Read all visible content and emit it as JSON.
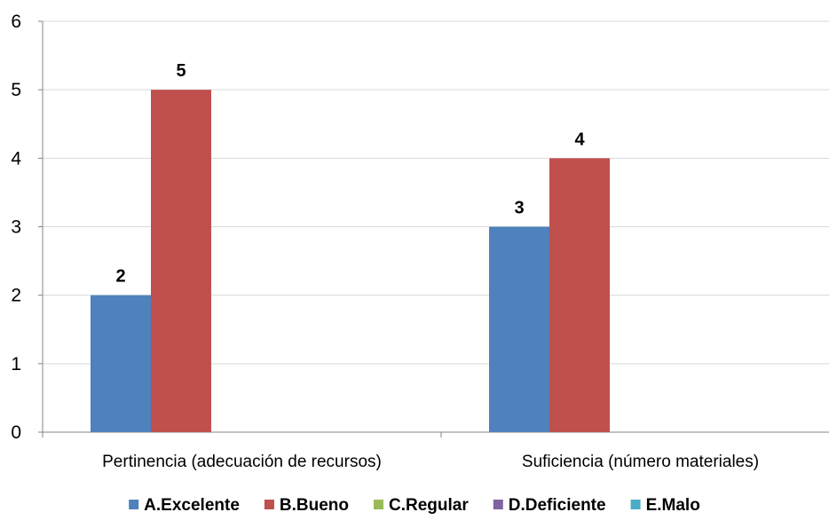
{
  "chart_data": {
    "type": "bar",
    "title": "",
    "xlabel": "",
    "ylabel": "",
    "ylim": [
      0,
      6
    ],
    "yticks": [
      0,
      1,
      2,
      3,
      4,
      5,
      6
    ],
    "grid": true,
    "legend_position": "bottom",
    "categories": [
      "Pertinencia (adecuación de recursos)",
      "Suficiencia (número materiales)"
    ],
    "series": [
      {
        "name": "A.Excelente",
        "color": "#4F81BD",
        "values": [
          2,
          3
        ]
      },
      {
        "name": "B.Bueno",
        "color": "#C0504D",
        "values": [
          5,
          4
        ]
      },
      {
        "name": "C.Regular",
        "color": "#9BBB59",
        "values": [
          null,
          null
        ]
      },
      {
        "name": "D.Deficiente",
        "color": "#8064A2",
        "values": [
          null,
          null
        ]
      },
      {
        "name": "E.Malo",
        "color": "#4BACC6",
        "values": [
          null,
          null
        ]
      }
    ]
  }
}
